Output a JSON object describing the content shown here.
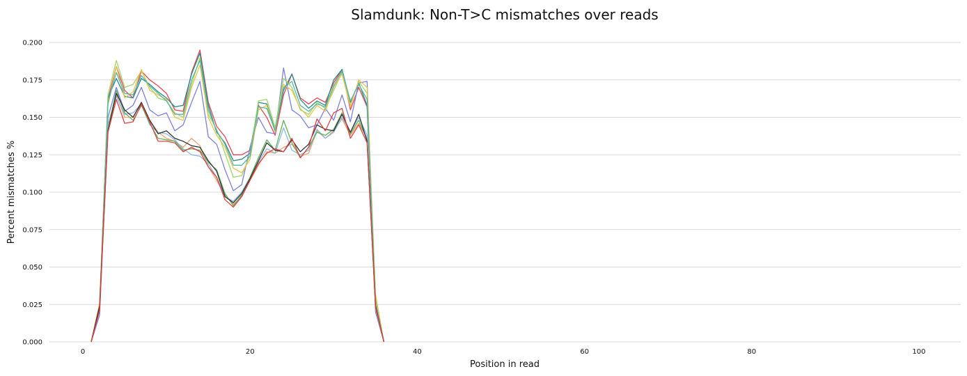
{
  "chart_data": {
    "type": "line",
    "title": "Slamdunk: Non-T>C mismatches over reads",
    "xlabel": "Position in read",
    "ylabel": "Percent mismatches %",
    "xlim": [
      -4,
      105
    ],
    "ylim": [
      0,
      0.2
    ],
    "xticks": [
      0,
      20,
      40,
      60,
      80,
      100
    ],
    "yticks": [
      0,
      0.025,
      0.05,
      0.075,
      0.1,
      0.125,
      0.15,
      0.175,
      0.2
    ],
    "ytick_labels": [
      "0.000",
      "0.025",
      "0.050",
      "0.075",
      "0.100",
      "0.125",
      "0.150",
      "0.175",
      "0.200"
    ],
    "grid": true,
    "x": [
      1,
      2,
      3,
      4,
      5,
      6,
      7,
      8,
      9,
      10,
      11,
      12,
      13,
      14,
      15,
      16,
      17,
      18,
      19,
      20,
      21,
      22,
      23,
      24,
      25,
      26,
      27,
      28,
      29,
      30,
      31,
      32,
      33,
      34,
      35,
      36
    ],
    "series": [
      {
        "color": "#e8434f",
        "values": [
          0,
          0.022,
          0.162,
          0.184,
          0.168,
          0.163,
          0.181,
          0.175,
          0.171,
          0.166,
          0.155,
          0.154,
          0.18,
          0.195,
          0.16,
          0.144,
          0.137,
          0.125,
          0.125,
          0.128,
          0.158,
          0.15,
          0.138,
          0.165,
          0.179,
          0.163,
          0.159,
          0.163,
          0.16,
          0.173,
          0.182,
          0.155,
          0.17,
          0.157,
          0.028,
          0
        ]
      },
      {
        "color": "#2b8a8a",
        "values": [
          0,
          0.024,
          0.163,
          0.176,
          0.164,
          0.163,
          0.176,
          0.172,
          0.167,
          0.163,
          0.157,
          0.158,
          0.179,
          0.193,
          0.158,
          0.14,
          0.133,
          0.121,
          0.122,
          0.126,
          0.16,
          0.159,
          0.141,
          0.168,
          0.179,
          0.162,
          0.156,
          0.161,
          0.158,
          0.175,
          0.182,
          0.16,
          0.173,
          0.158,
          0.026,
          0
        ]
      },
      {
        "color": "#7b7fdb",
        "values": [
          0,
          0.018,
          0.15,
          0.17,
          0.154,
          0.158,
          0.17,
          0.155,
          0.151,
          0.153,
          0.141,
          0.145,
          0.16,
          0.174,
          0.137,
          0.132,
          0.115,
          0.101,
          0.105,
          0.13,
          0.15,
          0.14,
          0.139,
          0.183,
          0.155,
          0.151,
          0.143,
          0.145,
          0.156,
          0.148,
          0.165,
          0.147,
          0.173,
          0.174,
          0.02,
          0
        ]
      },
      {
        "color": "#9fd66a",
        "values": [
          0,
          0.025,
          0.165,
          0.188,
          0.17,
          0.172,
          0.181,
          0.17,
          0.163,
          0.161,
          0.153,
          0.15,
          0.172,
          0.19,
          0.152,
          0.142,
          0.126,
          0.11,
          0.111,
          0.125,
          0.161,
          0.162,
          0.143,
          0.176,
          0.17,
          0.155,
          0.152,
          0.16,
          0.156,
          0.168,
          0.18,
          0.158,
          0.174,
          0.166,
          0.03,
          0
        ]
      },
      {
        "color": "#e8c24a",
        "values": [
          0,
          0.026,
          0.158,
          0.184,
          0.163,
          0.167,
          0.182,
          0.168,
          0.165,
          0.162,
          0.15,
          0.148,
          0.17,
          0.185,
          0.15,
          0.138,
          0.13,
          0.116,
          0.113,
          0.122,
          0.155,
          0.158,
          0.14,
          0.172,
          0.168,
          0.156,
          0.15,
          0.158,
          0.154,
          0.17,
          0.179,
          0.157,
          0.175,
          0.17,
          0.032,
          0
        ]
      },
      {
        "color": "#55b7a8",
        "values": [
          0,
          0.023,
          0.16,
          0.18,
          0.166,
          0.165,
          0.178,
          0.171,
          0.166,
          0.161,
          0.152,
          0.152,
          0.175,
          0.188,
          0.155,
          0.141,
          0.132,
          0.118,
          0.118,
          0.124,
          0.157,
          0.156,
          0.141,
          0.17,
          0.174,
          0.158,
          0.154,
          0.159,
          0.157,
          0.171,
          0.181,
          0.161,
          0.172,
          0.162,
          0.027,
          0
        ]
      },
      {
        "color": "#f0a070",
        "values": [
          0,
          0.025,
          0.145,
          0.165,
          0.15,
          0.15,
          0.16,
          0.148,
          0.14,
          0.136,
          0.134,
          0.13,
          0.136,
          0.131,
          0.117,
          0.108,
          0.098,
          0.092,
          0.097,
          0.108,
          0.118,
          0.127,
          0.126,
          0.13,
          0.132,
          0.124,
          0.126,
          0.141,
          0.136,
          0.141,
          0.149,
          0.138,
          0.146,
          0.136,
          0.025,
          0
        ]
      },
      {
        "color": "#8ab8e0",
        "values": [
          0,
          0.022,
          0.145,
          0.164,
          0.152,
          0.153,
          0.159,
          0.145,
          0.14,
          0.139,
          0.135,
          0.129,
          0.125,
          0.124,
          0.119,
          0.11,
          0.097,
          0.094,
          0.1,
          0.11,
          0.12,
          0.129,
          0.126,
          0.143,
          0.128,
          0.125,
          0.128,
          0.142,
          0.136,
          0.14,
          0.15,
          0.14,
          0.15,
          0.138,
          0.022,
          0
        ]
      },
      {
        "color": "#5bb05b",
        "values": [
          0,
          0.023,
          0.142,
          0.168,
          0.153,
          0.148,
          0.158,
          0.146,
          0.136,
          0.135,
          0.134,
          0.128,
          0.129,
          0.128,
          0.12,
          0.115,
          0.099,
          0.091,
          0.098,
          0.11,
          0.123,
          0.135,
          0.128,
          0.148,
          0.133,
          0.123,
          0.13,
          0.14,
          0.138,
          0.142,
          0.153,
          0.139,
          0.148,
          0.135,
          0.024,
          0
        ]
      },
      {
        "color": "#333333",
        "values": [
          0,
          0.024,
          0.141,
          0.166,
          0.155,
          0.15,
          0.16,
          0.148,
          0.139,
          0.141,
          0.136,
          0.134,
          0.131,
          0.13,
          0.121,
          0.114,
          0.097,
          0.093,
          0.099,
          0.109,
          0.121,
          0.133,
          0.128,
          0.127,
          0.135,
          0.127,
          0.132,
          0.145,
          0.142,
          0.141,
          0.152,
          0.14,
          0.152,
          0.134,
          0.024,
          0
        ]
      },
      {
        "color": "#e04040",
        "values": [
          0,
          0.021,
          0.14,
          0.162,
          0.146,
          0.147,
          0.159,
          0.147,
          0.134,
          0.134,
          0.133,
          0.127,
          0.13,
          0.127,
          0.117,
          0.11,
          0.095,
          0.09,
          0.097,
          0.108,
          0.119,
          0.126,
          0.129,
          0.127,
          0.136,
          0.123,
          0.13,
          0.149,
          0.141,
          0.153,
          0.156,
          0.136,
          0.145,
          0.133,
          0.023,
          0
        ]
      }
    ]
  }
}
